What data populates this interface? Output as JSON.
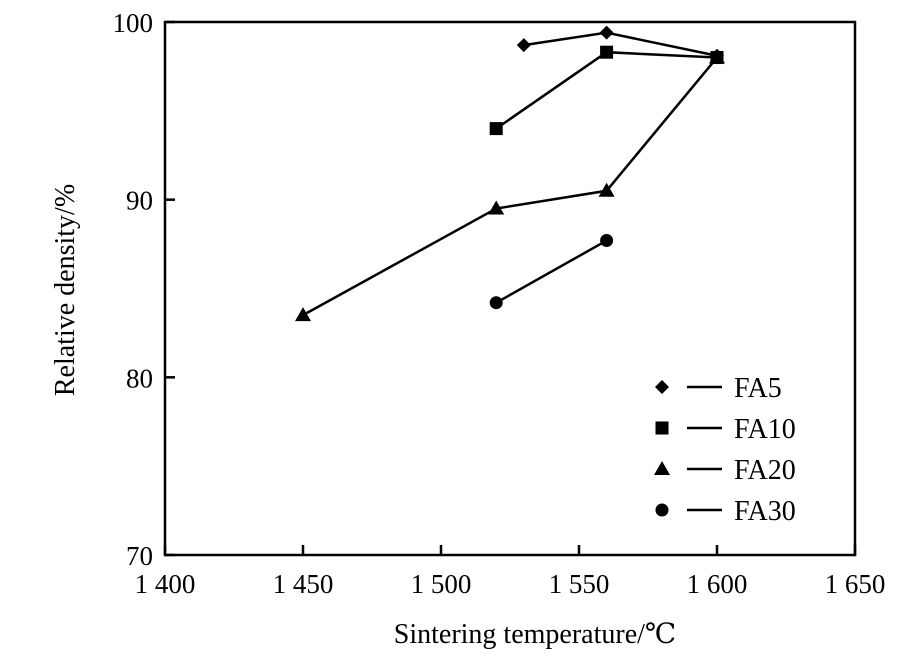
{
  "chart_data": {
    "type": "line",
    "title": "",
    "xlabel": "Sintering temperature/℃",
    "ylabel": "Relative density/%",
    "xlim": [
      1400,
      1650
    ],
    "ylim": [
      70,
      100
    ],
    "x_ticks": [
      1400,
      1450,
      1500,
      1550,
      1600,
      1650
    ],
    "x_tick_labels": [
      "1 400",
      "1 450",
      "1 500",
      "1 550",
      "1 600",
      "1 650"
    ],
    "y_ticks": [
      70,
      80,
      90,
      100
    ],
    "y_tick_labels": [
      "70",
      "80",
      "90",
      "100"
    ],
    "grid": false,
    "legend_position": "bottom-right",
    "series": [
      {
        "name": "FA5",
        "marker": "diamond",
        "x": [
          1530,
          1560,
          1600
        ],
        "y": [
          98.7,
          99.4,
          98.1
        ]
      },
      {
        "name": "FA10",
        "marker": "square",
        "x": [
          1520,
          1560,
          1600
        ],
        "y": [
          94.0,
          98.3,
          98.0
        ]
      },
      {
        "name": "FA20",
        "marker": "triangle",
        "x": [
          1450,
          1520,
          1560,
          1600
        ],
        "y": [
          83.5,
          89.5,
          90.5,
          98.0
        ]
      },
      {
        "name": "FA30",
        "marker": "circle",
        "x": [
          1520,
          1560
        ],
        "y": [
          84.2,
          87.7
        ]
      }
    ],
    "colors": {
      "line": "#000000",
      "marker": "#000000"
    }
  }
}
